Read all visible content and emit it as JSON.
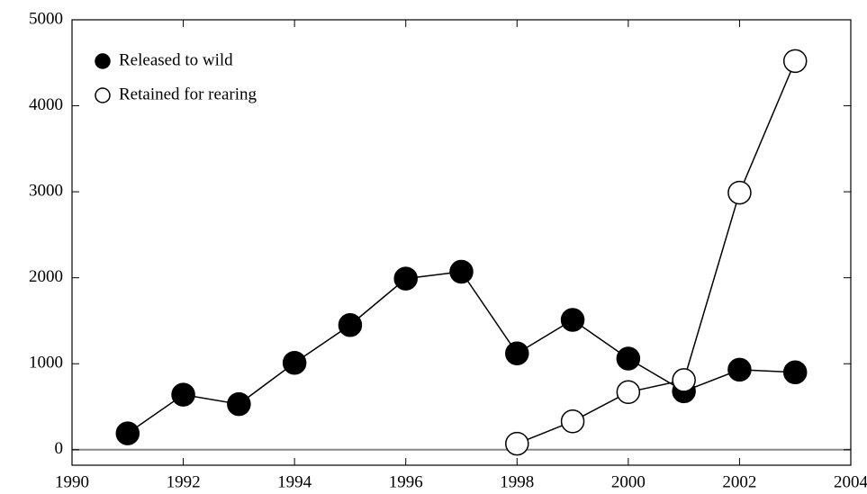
{
  "chart_data": {
    "type": "line",
    "x": [
      1991,
      1992,
      1993,
      1994,
      1995,
      1996,
      1997,
      1998,
      1999,
      2000,
      2001,
      2002,
      2003
    ],
    "series": [
      {
        "name": "Released to wild",
        "color": "#000000",
        "values": [
          190,
          640,
          530,
          1010,
          1450,
          1990,
          2070,
          1120,
          1510,
          1060,
          680,
          930,
          900
        ]
      },
      {
        "name": "Retained for rearing",
        "color": "#ffffff",
        "values": [
          null,
          null,
          null,
          null,
          null,
          null,
          null,
          70,
          330,
          670,
          810,
          2990,
          4520
        ]
      }
    ],
    "xlim": [
      1990,
      2004
    ],
    "xticks": [
      1990,
      1992,
      1994,
      1996,
      1998,
      2000,
      2002,
      2004
    ],
    "ylim": [
      -180,
      5000
    ],
    "yticks": [
      0,
      1000,
      2000,
      3000,
      4000,
      5000
    ],
    "zero_line": true,
    "legend": "upper left"
  }
}
